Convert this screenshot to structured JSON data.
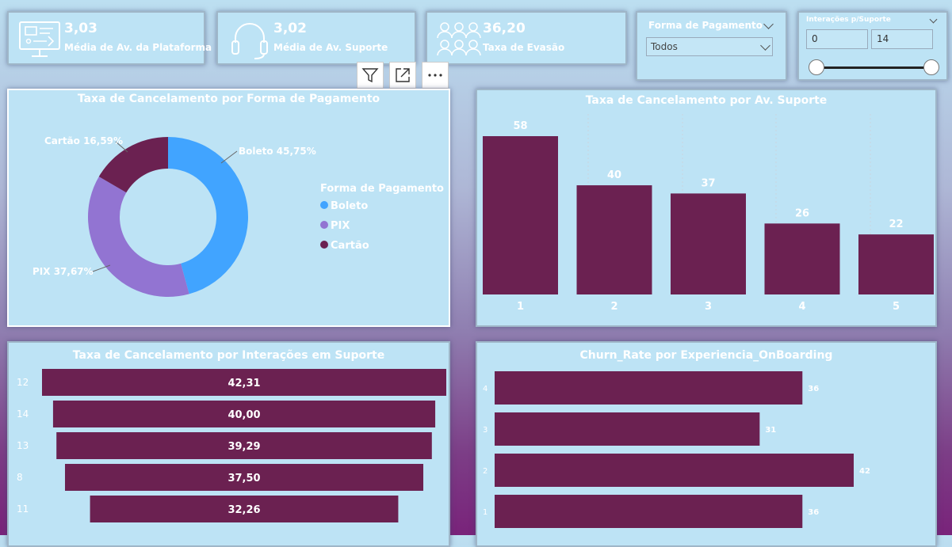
{
  "kpis": [
    {
      "value": "3,03",
      "label": "Média de Av. da Plataforma",
      "icon": "monitor-icon"
    },
    {
      "value": "3,02",
      "label": "Média de Av. Suporte",
      "icon": "headset-icon"
    },
    {
      "value": "36,20",
      "label": "Taxa de Evasão",
      "icon": "users-group-icon"
    }
  ],
  "slicer_payment": {
    "title": "Forma de Pagamento",
    "selected": "Todos"
  },
  "slicer_interactions": {
    "title": "Interações p/Suporte",
    "min": "0",
    "max": "14"
  },
  "visual_toolbar": {
    "filter": "filter-icon",
    "focus": "focus-mode-icon",
    "more": "more-options-icon"
  },
  "colors": {
    "bar": "#6b2151",
    "boleto": "#41a4ff",
    "pix": "#9274d2",
    "cartao": "#6b2151"
  },
  "chart_data": [
    {
      "type": "pie",
      "title": "Taxa de Cancelamento por Forma de Pagamento",
      "legend_title": "Forma de Pagamento",
      "legend_position": "right",
      "categories": [
        "Boleto",
        "PIX",
        "Cartão"
      ],
      "values": [
        45.75,
        37.67,
        16.59
      ],
      "labels": [
        "Boleto 45,75%",
        "PIX 37,67%",
        "Cartão 16,59%"
      ]
    },
    {
      "type": "bar",
      "title": "Taxa de Cancelamento por Av. Suporte",
      "categories": [
        "1",
        "2",
        "3",
        "4",
        "5"
      ],
      "values": [
        58,
        40,
        37,
        26,
        22
      ],
      "labels": [
        "58",
        "40",
        "37",
        "26",
        "22"
      ]
    },
    {
      "type": "bar",
      "title": "Taxa de Cancelamento por Interações em Suporte",
      "orientation": "horizontal-funnel",
      "categories": [
        "12",
        "14",
        "13",
        "8",
        "11"
      ],
      "values": [
        42.31,
        40.0,
        39.29,
        37.5,
        32.26
      ],
      "labels": [
        "42,31",
        "40,00",
        "39,29",
        "37,50",
        "32,26"
      ]
    },
    {
      "type": "bar",
      "title": "Churn_Rate por Experiencia_OnBoarding",
      "orientation": "horizontal",
      "categories": [
        "4",
        "3",
        "2",
        "1"
      ],
      "values": [
        36,
        31,
        42,
        36
      ],
      "labels": [
        "36",
        "31",
        "42",
        "36"
      ]
    }
  ]
}
